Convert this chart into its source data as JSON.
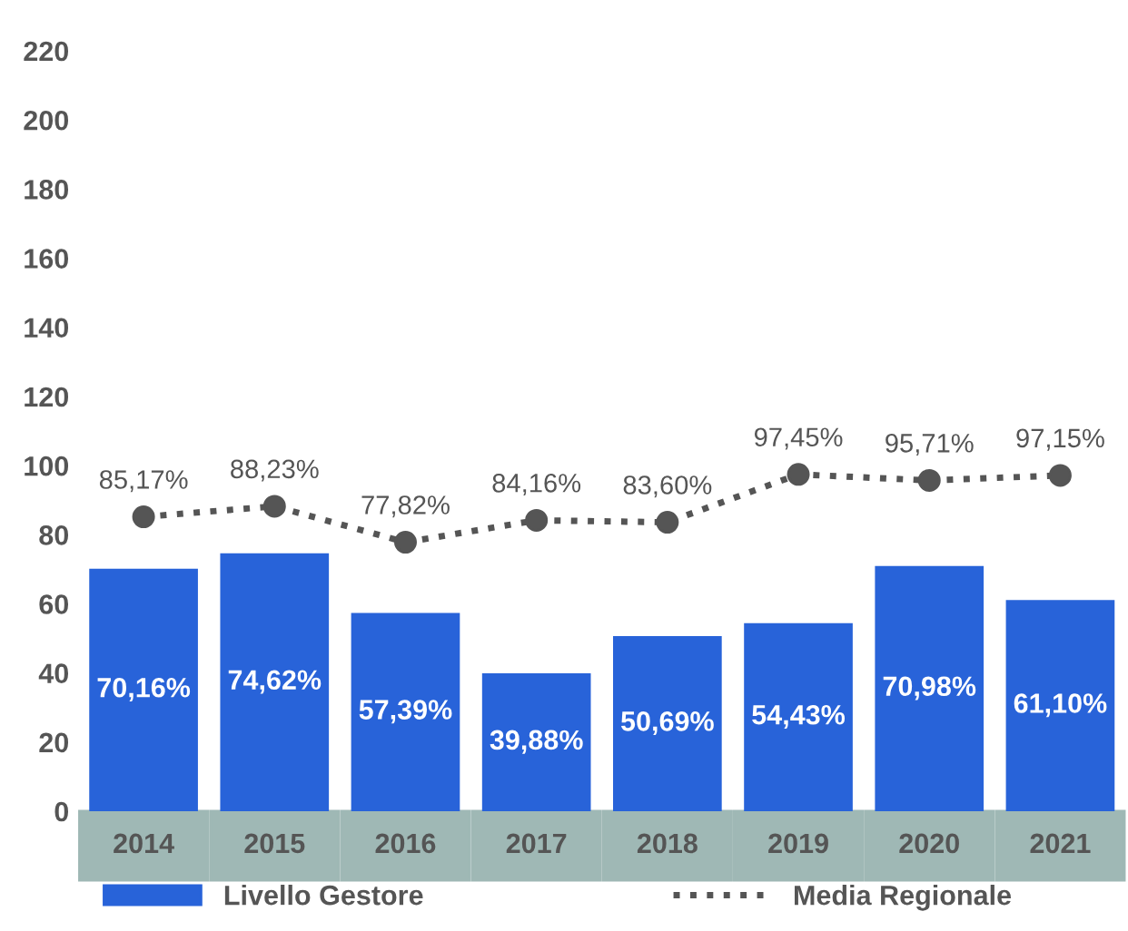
{
  "chart_data": {
    "type": "bar",
    "categories": [
      "2014",
      "2015",
      "2016",
      "2017",
      "2018",
      "2019",
      "2020",
      "2021"
    ],
    "series": [
      {
        "name": "Livello Gestore",
        "type": "bar",
        "color": "#2863d9",
        "values": [
          70.16,
          74.62,
          57.39,
          39.88,
          50.69,
          54.43,
          70.98,
          61.1
        ],
        "value_labels": [
          "70,16%",
          "74,62%",
          "57,39%",
          "39,88%",
          "50,69%",
          "54,43%",
          "70,98%",
          "61,10%"
        ]
      },
      {
        "name": "Media Regionale",
        "type": "line",
        "color": "#555555",
        "marker": "circle",
        "line_style": "dotted",
        "values": [
          85.17,
          88.23,
          77.82,
          84.16,
          83.6,
          97.45,
          95.71,
          97.15
        ],
        "value_labels": [
          "85,17%",
          "88,23%",
          "77,82%",
          "84,16%",
          "83,60%",
          "97,45%",
          "95,71%",
          "97,15%"
        ]
      }
    ],
    "ylim": [
      0,
      220
    ],
    "yticks": [
      0,
      20,
      40,
      60,
      80,
      100,
      120,
      140,
      160,
      180,
      200,
      220
    ],
    "grid": false,
    "legend": "bottom"
  }
}
